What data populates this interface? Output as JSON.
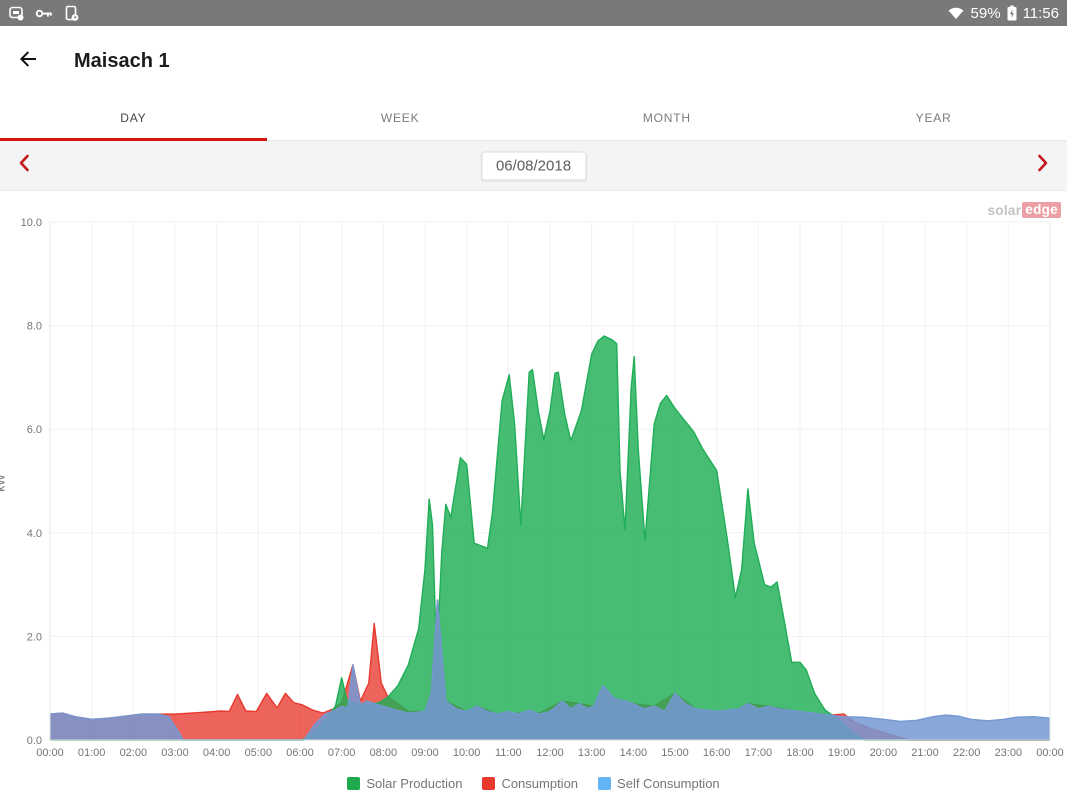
{
  "status_bar": {
    "battery_percent": "59%",
    "time": "11:56"
  },
  "header": {
    "title": "Maisach 1"
  },
  "tabs": [
    {
      "label": "DAY",
      "active": true
    },
    {
      "label": "WEEK",
      "active": false
    },
    {
      "label": "MONTH",
      "active": false
    },
    {
      "label": "YEAR",
      "active": false
    }
  ],
  "date_nav": {
    "date": "06/08/2018"
  },
  "watermark": {
    "part1": "solar",
    "part2": "edge"
  },
  "accent_color": "#d3150f",
  "chart_data": {
    "type": "area",
    "title": "",
    "ylabel": "kW",
    "ylim": [
      0,
      10
    ],
    "yticks": [
      "0.0",
      "2.0",
      "4.0",
      "6.0",
      "8.0",
      "10.0"
    ],
    "xlim": [
      0,
      24
    ],
    "xtick_hours": [
      0,
      1,
      2,
      3,
      4,
      5,
      6,
      7,
      8,
      9,
      10,
      11,
      12,
      13,
      14,
      15,
      16,
      17,
      18,
      19,
      20,
      21,
      22,
      23,
      24
    ],
    "xtick_labels": [
      "00:00",
      "01:00",
      "02:00",
      "03:00",
      "04:00",
      "05:00",
      "06:00",
      "07:00",
      "08:00",
      "09:00",
      "10:00",
      "11:00",
      "12:00",
      "13:00",
      "14:00",
      "15:00",
      "16:00",
      "17:00",
      "18:00",
      "19:00",
      "20:00",
      "21:00",
      "22:00",
      "23:00",
      "00:00"
    ],
    "grid": true,
    "legend_position": "bottom",
    "series": [
      {
        "name": "Consumption",
        "color": "#e8392e",
        "fill_opacity": 0.78,
        "points": [
          [
            0,
            0.5
          ],
          [
            0.3,
            0.52
          ],
          [
            0.6,
            0.45
          ],
          [
            1.0,
            0.4
          ],
          [
            1.4,
            0.42
          ],
          [
            1.8,
            0.46
          ],
          [
            2.2,
            0.5
          ],
          [
            2.6,
            0.5
          ],
          [
            3.0,
            0.5
          ],
          [
            3.4,
            0.52
          ],
          [
            3.8,
            0.54
          ],
          [
            4.1,
            0.56
          ],
          [
            4.3,
            0.55
          ],
          [
            4.5,
            0.88
          ],
          [
            4.7,
            0.56
          ],
          [
            4.95,
            0.55
          ],
          [
            5.2,
            0.9
          ],
          [
            5.45,
            0.62
          ],
          [
            5.65,
            0.9
          ],
          [
            5.85,
            0.72
          ],
          [
            6.05,
            0.68
          ],
          [
            6.3,
            0.58
          ],
          [
            6.55,
            0.52
          ],
          [
            6.8,
            0.6
          ],
          [
            7.0,
            0.72
          ],
          [
            7.27,
            1.45
          ],
          [
            7.45,
            0.75
          ],
          [
            7.65,
            1.1
          ],
          [
            7.78,
            2.25
          ],
          [
            7.95,
            1.1
          ],
          [
            8.1,
            0.85
          ],
          [
            8.3,
            0.72
          ],
          [
            8.6,
            0.55
          ],
          [
            9.0,
            0.55
          ],
          [
            9.15,
            0.9
          ],
          [
            9.3,
            2.7
          ],
          [
            9.5,
            0.75
          ],
          [
            10.0,
            0.55
          ],
          [
            10.25,
            0.65
          ],
          [
            10.75,
            0.5
          ],
          [
            11.25,
            0.52
          ],
          [
            11.75,
            0.52
          ],
          [
            12.3,
            0.75
          ],
          [
            12.7,
            0.7
          ],
          [
            13.05,
            0.65
          ],
          [
            13.27,
            1.05
          ],
          [
            13.55,
            0.8
          ],
          [
            14.0,
            0.7
          ],
          [
            14.5,
            0.65
          ],
          [
            15.0,
            0.9
          ],
          [
            15.5,
            0.6
          ],
          [
            16.0,
            0.55
          ],
          [
            16.55,
            0.6
          ],
          [
            16.75,
            0.7
          ],
          [
            17.25,
            0.65
          ],
          [
            17.75,
            0.58
          ],
          [
            18.25,
            0.52
          ],
          [
            18.75,
            0.48
          ],
          [
            19.05,
            0.5
          ],
          [
            19.3,
            0.35
          ],
          [
            19.7,
            0.22
          ],
          [
            20.1,
            0.12
          ],
          [
            20.6,
            0
          ],
          [
            24,
            0
          ]
        ]
      },
      {
        "name": "Solar Production",
        "color": "#1fae56",
        "fill_opacity": 0.82,
        "points": [
          [
            0,
            0
          ],
          [
            6.05,
            0
          ],
          [
            6.3,
            0.12
          ],
          [
            6.6,
            0.38
          ],
          [
            6.85,
            0.65
          ],
          [
            7.0,
            1.2
          ],
          [
            7.12,
            0.78
          ],
          [
            7.35,
            0.7
          ],
          [
            7.6,
            0.68
          ],
          [
            7.9,
            0.72
          ],
          [
            8.1,
            0.82
          ],
          [
            8.35,
            1.05
          ],
          [
            8.6,
            1.45
          ],
          [
            8.85,
            2.15
          ],
          [
            9.0,
            3.3
          ],
          [
            9.1,
            4.65
          ],
          [
            9.18,
            4.15
          ],
          [
            9.28,
            1.5
          ],
          [
            9.4,
            3.6
          ],
          [
            9.5,
            4.55
          ],
          [
            9.62,
            4.3
          ],
          [
            9.85,
            5.45
          ],
          [
            10.0,
            5.32
          ],
          [
            10.18,
            3.8
          ],
          [
            10.5,
            3.7
          ],
          [
            10.62,
            4.4
          ],
          [
            10.85,
            6.55
          ],
          [
            11.02,
            7.05
          ],
          [
            11.15,
            6.1
          ],
          [
            11.3,
            4.15
          ],
          [
            11.5,
            7.1
          ],
          [
            11.58,
            7.15
          ],
          [
            11.72,
            6.35
          ],
          [
            11.85,
            5.8
          ],
          [
            12.0,
            6.35
          ],
          [
            12.12,
            7.08
          ],
          [
            12.2,
            7.1
          ],
          [
            12.35,
            6.3
          ],
          [
            12.5,
            5.78
          ],
          [
            12.75,
            6.35
          ],
          [
            13.0,
            7.45
          ],
          [
            13.15,
            7.7
          ],
          [
            13.3,
            7.8
          ],
          [
            13.5,
            7.72
          ],
          [
            13.6,
            7.65
          ],
          [
            13.68,
            5.2
          ],
          [
            13.8,
            4.05
          ],
          [
            13.95,
            6.8
          ],
          [
            14.02,
            7.4
          ],
          [
            14.12,
            5.6
          ],
          [
            14.28,
            3.85
          ],
          [
            14.5,
            6.1
          ],
          [
            14.65,
            6.5
          ],
          [
            14.8,
            6.65
          ],
          [
            15.0,
            6.4
          ],
          [
            15.2,
            6.2
          ],
          [
            15.45,
            5.95
          ],
          [
            15.68,
            5.6
          ],
          [
            16.0,
            5.2
          ],
          [
            16.25,
            3.9
          ],
          [
            16.45,
            2.75
          ],
          [
            16.6,
            3.3
          ],
          [
            16.75,
            4.85
          ],
          [
            16.9,
            3.8
          ],
          [
            17.15,
            3.0
          ],
          [
            17.3,
            2.95
          ],
          [
            17.45,
            3.05
          ],
          [
            17.6,
            2.4
          ],
          [
            17.8,
            1.5
          ],
          [
            18.0,
            1.5
          ],
          [
            18.15,
            1.35
          ],
          [
            18.35,
            0.9
          ],
          [
            18.6,
            0.58
          ],
          [
            19.0,
            0.35
          ],
          [
            19.3,
            0.12
          ],
          [
            19.55,
            0
          ],
          [
            24,
            0
          ]
        ]
      },
      {
        "name": "Self Consumption",
        "color": "#7498d2",
        "fill_opacity": 0.85,
        "points": [
          [
            0,
            0.5
          ],
          [
            0.3,
            0.52
          ],
          [
            0.6,
            0.45
          ],
          [
            1.0,
            0.4
          ],
          [
            1.4,
            0.42
          ],
          [
            1.8,
            0.46
          ],
          [
            2.2,
            0.5
          ],
          [
            2.6,
            0.5
          ],
          [
            2.85,
            0.45
          ],
          [
            3.05,
            0.2
          ],
          [
            3.2,
            0
          ],
          [
            6.1,
            0
          ],
          [
            6.35,
            0.3
          ],
          [
            6.6,
            0.5
          ],
          [
            6.85,
            0.58
          ],
          [
            7.0,
            0.65
          ],
          [
            7.15,
            0.62
          ],
          [
            7.27,
            1.45
          ],
          [
            7.45,
            0.68
          ],
          [
            7.6,
            0.75
          ],
          [
            7.8,
            0.7
          ],
          [
            8.0,
            0.65
          ],
          [
            8.3,
            0.58
          ],
          [
            8.6,
            0.52
          ],
          [
            9.0,
            0.55
          ],
          [
            9.15,
            0.9
          ],
          [
            9.3,
            2.7
          ],
          [
            9.5,
            0.75
          ],
          [
            9.75,
            0.6
          ],
          [
            10.0,
            0.55
          ],
          [
            10.25,
            0.65
          ],
          [
            10.5,
            0.55
          ],
          [
            10.75,
            0.5
          ],
          [
            11.0,
            0.55
          ],
          [
            11.25,
            0.5
          ],
          [
            11.5,
            0.58
          ],
          [
            11.75,
            0.5
          ],
          [
            12.0,
            0.55
          ],
          [
            12.3,
            0.75
          ],
          [
            12.5,
            0.6
          ],
          [
            12.7,
            0.7
          ],
          [
            12.9,
            0.6
          ],
          [
            13.05,
            0.65
          ],
          [
            13.27,
            1.05
          ],
          [
            13.55,
            0.8
          ],
          [
            13.8,
            0.75
          ],
          [
            14.0,
            0.7
          ],
          [
            14.25,
            0.6
          ],
          [
            14.5,
            0.65
          ],
          [
            14.75,
            0.55
          ],
          [
            15.0,
            0.9
          ],
          [
            15.25,
            0.7
          ],
          [
            15.5,
            0.6
          ],
          [
            16.0,
            0.55
          ],
          [
            16.3,
            0.58
          ],
          [
            16.55,
            0.6
          ],
          [
            16.75,
            0.7
          ],
          [
            17.0,
            0.6
          ],
          [
            17.25,
            0.65
          ],
          [
            17.5,
            0.6
          ],
          [
            18.0,
            0.55
          ],
          [
            18.5,
            0.5
          ],
          [
            19.0,
            0.45
          ],
          [
            19.5,
            0.44
          ],
          [
            20.0,
            0.4
          ],
          [
            20.4,
            0.36
          ],
          [
            20.8,
            0.38
          ],
          [
            21.2,
            0.45
          ],
          [
            21.5,
            0.48
          ],
          [
            21.8,
            0.46
          ],
          [
            22.1,
            0.4
          ],
          [
            22.5,
            0.37
          ],
          [
            22.9,
            0.4
          ],
          [
            23.2,
            0.44
          ],
          [
            23.6,
            0.45
          ],
          [
            24,
            0.42
          ]
        ]
      }
    ],
    "legend": [
      {
        "label": "Solar Production",
        "color": "#1fa94e"
      },
      {
        "label": "Consumption",
        "color": "#e8392e"
      },
      {
        "label": "Self Consumption",
        "color": "#64b5f6"
      }
    ]
  }
}
